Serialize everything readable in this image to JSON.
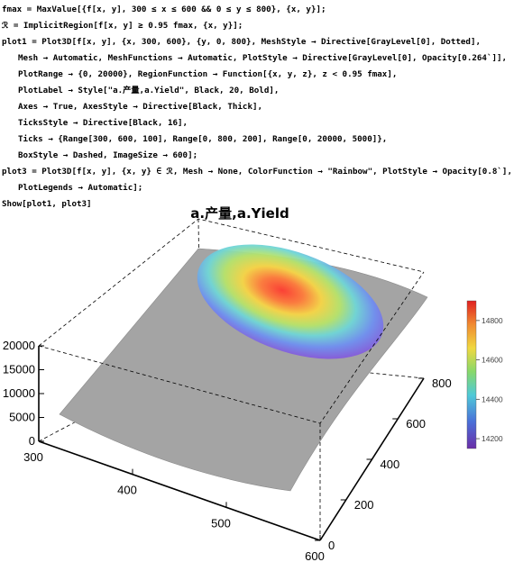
{
  "code_lines": [
    {
      "text": "fmax = MaxValue[{f[x, y], 300 ≤ x ≤ 600 && 0 ≤ y ≤ 800}, {x, y}];",
      "indent": false
    },
    {
      "text": "ℛ = ImplicitRegion[f[x, y] ≥ 0.95 fmax, {x, y}];",
      "indent": false
    },
    {
      "text": "plot1 = Plot3D[f[x, y], {x, 300, 600}, {y, 0, 800}, MeshStyle → Directive[GrayLevel[0], Dotted],",
      "indent": false
    },
    {
      "text": "Mesh → Automatic, MeshFunctions → Automatic, PlotStyle → Directive[GrayLevel[0], Opacity[0.264`]],",
      "indent": true
    },
    {
      "text": "PlotRange → {0, 20000}, RegionFunction → Function[{x, y, z}, z < 0.95 fmax],",
      "indent": true
    },
    {
      "text": "PlotLabel → Style[\"a.产量,a.Yield\", Black, 20, Bold],",
      "indent": true
    },
    {
      "text": "Axes → True, AxesStyle → Directive[Black, Thick],",
      "indent": true
    },
    {
      "text": "TicksStyle → Directive[Black, 16],",
      "indent": true
    },
    {
      "text": "Ticks → {Range[300, 600, 100], Range[0, 800, 200], Range[0, 20000, 5000]},",
      "indent": true
    },
    {
      "text": "BoxStyle → Dashed, ImageSize → 600];",
      "indent": true
    },
    {
      "text": "plot3 = Plot3D[f[x, y], {x, y} ∈ ℛ, Mesh → None, ColorFunction → \"Rainbow\", PlotStyle → Opacity[0.8`],",
      "indent": false
    },
    {
      "text": "PlotLegends → Automatic];",
      "indent": true
    },
    {
      "text": "Show[plot1, plot3]",
      "indent": false
    }
  ],
  "figure": {
    "title": "a.产量,a.Yield",
    "surface_color": "#a0a0a0",
    "box_style": "dashed",
    "colormap": "Rainbow"
  },
  "chart_data": {
    "type": "surface3d",
    "title": "a.产量,a.Yield",
    "x_axis": {
      "ticks": [
        300,
        400,
        500,
        600
      ],
      "range": [
        300,
        600
      ]
    },
    "y_axis": {
      "ticks": [
        0,
        200,
        400,
        600,
        800
      ],
      "range": [
        0,
        800
      ]
    },
    "z_axis": {
      "ticks": [
        0,
        5000,
        10000,
        15000,
        20000
      ],
      "range": [
        0,
        20000
      ]
    },
    "x_tick_labels": [
      "300",
      "400",
      "500",
      "600"
    ],
    "y_tick_labels": [
      "0",
      "200",
      "400",
      "600",
      "800"
    ],
    "z_tick_labels": [
      "0",
      "5000",
      "10000",
      "15000",
      "20000"
    ],
    "legend": {
      "type": "color-bar",
      "placement": "right",
      "range": [
        14150,
        14900
      ],
      "ticks": [
        14200,
        14400,
        14600,
        14800
      ],
      "tick_labels": [
        "14200",
        "14400",
        "14600",
        "14800"
      ]
    }
  }
}
